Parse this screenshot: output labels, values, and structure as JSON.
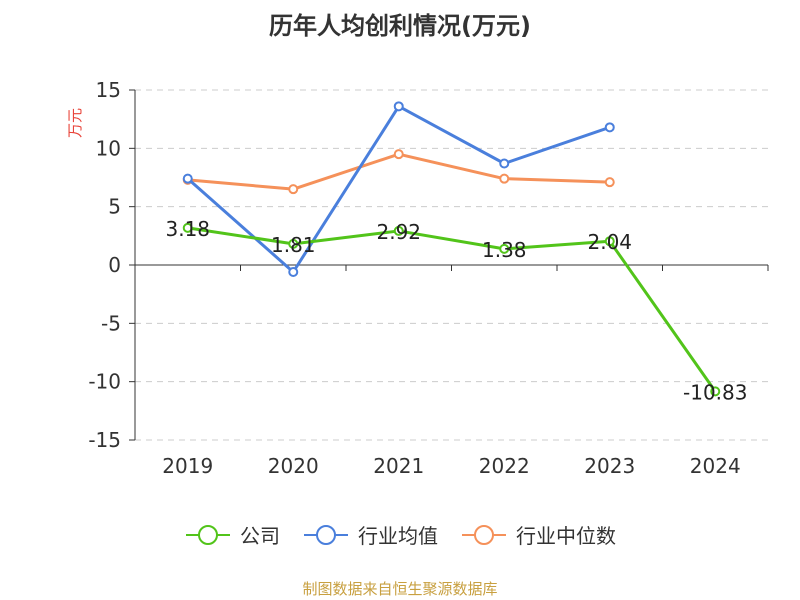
{
  "chart_data": {
    "type": "line",
    "title": "历年人均创利情况(万元)",
    "ylabel": "万元",
    "xlabel": "",
    "categories": [
      "2019",
      "2020",
      "2021",
      "2022",
      "2023",
      "2024"
    ],
    "ylim": [
      -15,
      15
    ],
    "yticks": [
      -15,
      -10,
      -5,
      0,
      5,
      10,
      15
    ],
    "grid": true,
    "legend_position": "bottom",
    "series": [
      {
        "name": "公司",
        "color": "#52c41a",
        "values": [
          3.18,
          1.81,
          2.92,
          1.38,
          2.04,
          -10.83
        ],
        "labels": [
          "3.18",
          "1.81",
          "2.92",
          "1.38",
          "2.04",
          "-10.83"
        ]
      },
      {
        "name": "行业均值",
        "color": "#4a7fdc",
        "values": [
          7.4,
          -0.6,
          13.6,
          8.7,
          11.8,
          null
        ]
      },
      {
        "name": "行业中位数",
        "color": "#f5915a",
        "values": [
          7.3,
          6.5,
          9.5,
          7.4,
          7.1,
          null
        ]
      }
    ],
    "source": "制图数据来自恒生聚源数据库"
  }
}
